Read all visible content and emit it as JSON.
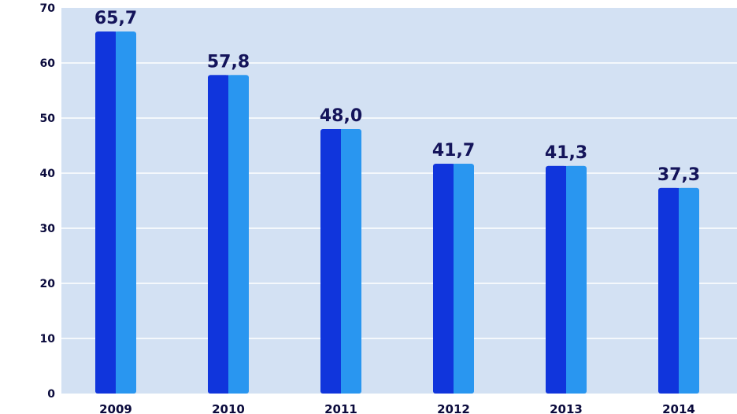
{
  "chart_data": {
    "type": "bar",
    "categories": [
      "2009",
      "2010",
      "2011",
      "2012",
      "2013",
      "2014"
    ],
    "values": [
      65.7,
      57.8,
      48.0,
      41.7,
      41.3,
      37.3
    ],
    "value_labels": [
      "65,7",
      "57,8",
      "48,0",
      "41,7",
      "41,3",
      "37,3"
    ],
    "y_ticks": [
      "0",
      "10",
      "20",
      "30",
      "40",
      "50",
      "60",
      "70"
    ],
    "ylim": [
      0,
      70
    ],
    "title": "",
    "xlabel": "",
    "ylabel": "",
    "grid": true,
    "legend": "none"
  },
  "colors": {
    "plot_background": "#d3e1f3",
    "gridline": "#ffffff",
    "bar_dark": "#1035dc",
    "bar_light": "#2996f0",
    "label_text": "#14145a"
  }
}
